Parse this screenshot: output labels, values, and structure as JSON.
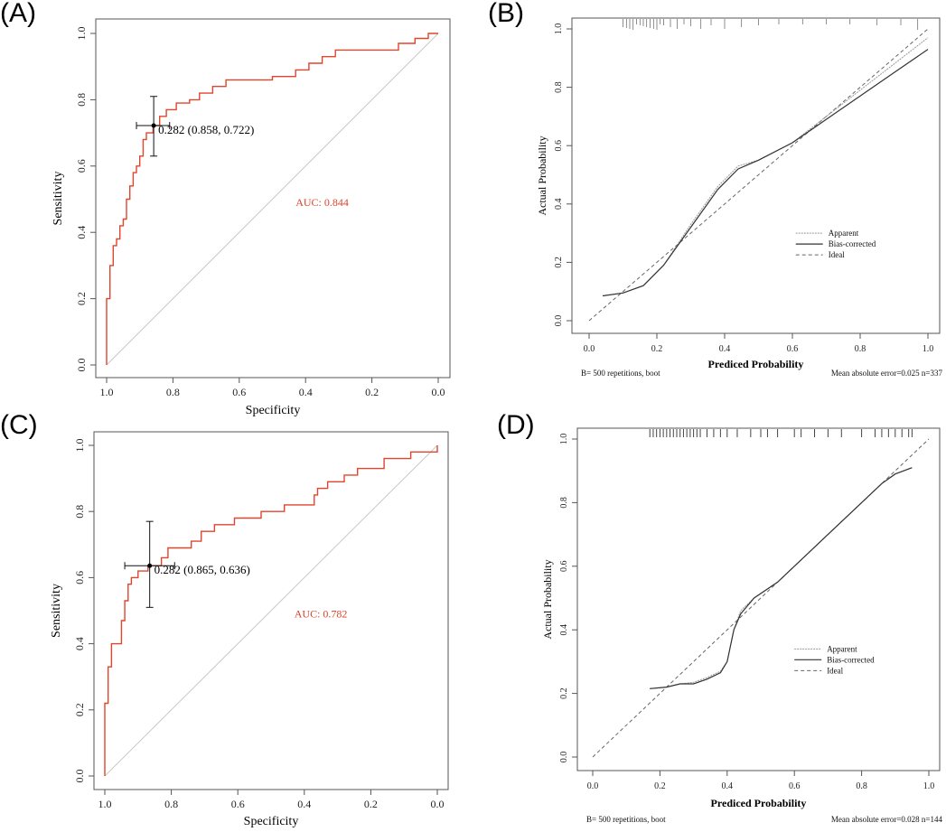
{
  "colors": {
    "roc": "#e0452e",
    "auc_text": "#d9452e",
    "ink": "#222222",
    "diag": "#c8c8c8",
    "frame": "#555555"
  },
  "chart_data": [
    {
      "id": "A",
      "panel_label": "(A)",
      "type": "line",
      "kind": "roc",
      "xlabel": "Specificity",
      "ylabel": "Sensitivity",
      "xlim": [
        1.0,
        0.0
      ],
      "ylim": [
        0.0,
        1.0
      ],
      "ticks": [
        "0.0",
        "0.2",
        "0.4",
        "0.6",
        "0.8",
        "1.0"
      ],
      "x_tick_labels": [
        "1.0",
        "0.8",
        "0.6",
        "0.4",
        "0.2",
        "0.0"
      ],
      "auc_label": "AUC: 0.844",
      "auc_pos": [
        0.43,
        0.48
      ],
      "threshold_label": "0.282 (0.858, 0.722)",
      "point": [
        0.858,
        0.722
      ],
      "ci_x": [
        0.91,
        0.81
      ],
      "ci_y": [
        0.63,
        0.81
      ],
      "curve": [
        [
          1.0,
          0.0
        ],
        [
          1.0,
          0.2
        ],
        [
          0.99,
          0.2
        ],
        [
          0.99,
          0.3
        ],
        [
          0.98,
          0.3
        ],
        [
          0.98,
          0.36
        ],
        [
          0.97,
          0.36
        ],
        [
          0.97,
          0.38
        ],
        [
          0.96,
          0.38
        ],
        [
          0.96,
          0.42
        ],
        [
          0.95,
          0.42
        ],
        [
          0.95,
          0.44
        ],
        [
          0.94,
          0.44
        ],
        [
          0.94,
          0.5
        ],
        [
          0.93,
          0.5
        ],
        [
          0.93,
          0.54
        ],
        [
          0.92,
          0.54
        ],
        [
          0.92,
          0.58
        ],
        [
          0.91,
          0.58
        ],
        [
          0.91,
          0.6
        ],
        [
          0.9,
          0.6
        ],
        [
          0.9,
          0.63
        ],
        [
          0.89,
          0.63
        ],
        [
          0.89,
          0.68
        ],
        [
          0.88,
          0.68
        ],
        [
          0.88,
          0.7
        ],
        [
          0.86,
          0.7
        ],
        [
          0.86,
          0.722
        ],
        [
          0.84,
          0.722
        ],
        [
          0.84,
          0.75
        ],
        [
          0.82,
          0.75
        ],
        [
          0.82,
          0.77
        ],
        [
          0.79,
          0.77
        ],
        [
          0.79,
          0.79
        ],
        [
          0.75,
          0.79
        ],
        [
          0.75,
          0.8
        ],
        [
          0.72,
          0.8
        ],
        [
          0.72,
          0.82
        ],
        [
          0.68,
          0.82
        ],
        [
          0.68,
          0.84
        ],
        [
          0.64,
          0.84
        ],
        [
          0.64,
          0.86
        ],
        [
          0.5,
          0.86
        ],
        [
          0.5,
          0.87
        ],
        [
          0.43,
          0.87
        ],
        [
          0.43,
          0.89
        ],
        [
          0.39,
          0.89
        ],
        [
          0.39,
          0.91
        ],
        [
          0.35,
          0.91
        ],
        [
          0.35,
          0.93
        ],
        [
          0.31,
          0.93
        ],
        [
          0.31,
          0.95
        ],
        [
          0.12,
          0.95
        ],
        [
          0.12,
          0.97
        ],
        [
          0.07,
          0.97
        ],
        [
          0.07,
          0.985
        ],
        [
          0.03,
          0.985
        ],
        [
          0.03,
          1.0
        ],
        [
          0.0,
          1.0
        ]
      ]
    },
    {
      "id": "B",
      "panel_label": "(B)",
      "type": "line",
      "kind": "calibration",
      "xlabel": "Prediced Probability",
      "ylabel": "Actual Probability",
      "xlim": [
        0.0,
        1.0
      ],
      "ylim": [
        0.0,
        1.0
      ],
      "ticks": [
        "0.0",
        "0.2",
        "0.4",
        "0.6",
        "0.8",
        "1.0"
      ],
      "footer_left": "B= 500 repetitions, boot",
      "footer_right": "Mean absolute error=0.025 n=337",
      "legend": [
        "Apparent",
        "Bias-corrected",
        "Ideal"
      ],
      "legend_pos": [
        0.61,
        0.3
      ],
      "rug_top": [
        0.1,
        0.11,
        0.12,
        0.13,
        0.14,
        0.15,
        0.16,
        0.17,
        0.18,
        0.19,
        0.2,
        0.21,
        0.22,
        0.24,
        0.26,
        0.28,
        0.3,
        0.33,
        0.36,
        0.4,
        0.45,
        0.5,
        0.56,
        0.63,
        0.7,
        0.77,
        0.85,
        0.92,
        0.97
      ],
      "apparent": [
        [
          0.04,
          0.085
        ],
        [
          0.1,
          0.095
        ],
        [
          0.16,
          0.12
        ],
        [
          0.22,
          0.19
        ],
        [
          0.3,
          0.33
        ],
        [
          0.38,
          0.46
        ],
        [
          0.44,
          0.53
        ],
        [
          0.5,
          0.55
        ],
        [
          0.6,
          0.61
        ],
        [
          0.7,
          0.7
        ],
        [
          0.8,
          0.79
        ],
        [
          0.9,
          0.88
        ],
        [
          1.0,
          0.97
        ]
      ],
      "bias_corrected": [
        [
          0.04,
          0.085
        ],
        [
          0.1,
          0.095
        ],
        [
          0.16,
          0.12
        ],
        [
          0.22,
          0.19
        ],
        [
          0.3,
          0.32
        ],
        [
          0.38,
          0.45
        ],
        [
          0.44,
          0.52
        ],
        [
          0.5,
          0.55
        ],
        [
          0.6,
          0.61
        ],
        [
          0.7,
          0.69
        ],
        [
          0.8,
          0.77
        ],
        [
          0.9,
          0.85
        ],
        [
          1.0,
          0.93
        ]
      ]
    },
    {
      "id": "C",
      "panel_label": "(C)",
      "type": "line",
      "kind": "roc",
      "xlabel": "Specificity",
      "ylabel": "Sensitivity",
      "xlim": [
        1.0,
        0.0
      ],
      "ylim": [
        0.0,
        1.0
      ],
      "ticks": [
        "0.0",
        "0.2",
        "0.4",
        "0.6",
        "0.8",
        "1.0"
      ],
      "x_tick_labels": [
        "1.0",
        "0.8",
        "0.6",
        "0.4",
        "0.2",
        "0.0"
      ],
      "auc_label": "AUC: 0.782",
      "auc_pos": [
        0.43,
        0.48
      ],
      "threshold_label": "0.282 (0.865, 0.636)",
      "point": [
        0.865,
        0.636
      ],
      "ci_x": [
        0.94,
        0.79
      ],
      "ci_y": [
        0.51,
        0.77
      ],
      "curve": [
        [
          1.0,
          0.0
        ],
        [
          1.0,
          0.22
        ],
        [
          0.99,
          0.22
        ],
        [
          0.99,
          0.33
        ],
        [
          0.98,
          0.33
        ],
        [
          0.98,
          0.4
        ],
        [
          0.95,
          0.4
        ],
        [
          0.95,
          0.47
        ],
        [
          0.94,
          0.47
        ],
        [
          0.94,
          0.53
        ],
        [
          0.93,
          0.53
        ],
        [
          0.93,
          0.58
        ],
        [
          0.92,
          0.58
        ],
        [
          0.92,
          0.6
        ],
        [
          0.9,
          0.6
        ],
        [
          0.9,
          0.62
        ],
        [
          0.87,
          0.62
        ],
        [
          0.87,
          0.636
        ],
        [
          0.83,
          0.636
        ],
        [
          0.83,
          0.66
        ],
        [
          0.81,
          0.66
        ],
        [
          0.81,
          0.69
        ],
        [
          0.74,
          0.69
        ],
        [
          0.74,
          0.71
        ],
        [
          0.71,
          0.71
        ],
        [
          0.71,
          0.74
        ],
        [
          0.67,
          0.74
        ],
        [
          0.67,
          0.76
        ],
        [
          0.61,
          0.76
        ],
        [
          0.61,
          0.78
        ],
        [
          0.53,
          0.78
        ],
        [
          0.53,
          0.8
        ],
        [
          0.46,
          0.8
        ],
        [
          0.46,
          0.82
        ],
        [
          0.37,
          0.82
        ],
        [
          0.37,
          0.85
        ],
        [
          0.36,
          0.85
        ],
        [
          0.36,
          0.87
        ],
        [
          0.33,
          0.87
        ],
        [
          0.33,
          0.89
        ],
        [
          0.28,
          0.89
        ],
        [
          0.28,
          0.91
        ],
        [
          0.24,
          0.91
        ],
        [
          0.24,
          0.93
        ],
        [
          0.16,
          0.93
        ],
        [
          0.16,
          0.96
        ],
        [
          0.08,
          0.96
        ],
        [
          0.08,
          0.98
        ],
        [
          0.0,
          0.98
        ],
        [
          0.0,
          1.0
        ]
      ]
    },
    {
      "id": "D",
      "panel_label": "(D)",
      "type": "line",
      "kind": "calibration",
      "xlabel": "Prediced Probability",
      "ylabel": "Actual Probability",
      "xlim": [
        0.0,
        1.0
      ],
      "ylim": [
        0.0,
        1.0
      ],
      "ticks": [
        "0.0",
        "0.2",
        "0.4",
        "0.6",
        "0.8",
        "1.0"
      ],
      "footer_left": "B= 500 repetitions, boot",
      "footer_right": "Mean absolute error=0.028 n=144",
      "legend": [
        "Apparent",
        "Bias-corrected",
        "Ideal"
      ],
      "legend_pos": [
        0.6,
        0.34
      ],
      "rug_top": [
        0.17,
        0.18,
        0.19,
        0.2,
        0.21,
        0.22,
        0.23,
        0.24,
        0.25,
        0.26,
        0.27,
        0.28,
        0.29,
        0.3,
        0.31,
        0.32,
        0.34,
        0.36,
        0.38,
        0.4,
        0.43,
        0.47,
        0.5,
        0.52,
        0.55,
        0.6,
        0.62,
        0.66,
        0.7,
        0.74,
        0.8,
        0.84,
        0.86,
        0.88,
        0.9,
        0.92,
        0.94,
        0.95
      ],
      "apparent": [
        [
          0.17,
          0.215
        ],
        [
          0.22,
          0.22
        ],
        [
          0.26,
          0.23
        ],
        [
          0.3,
          0.235
        ],
        [
          0.34,
          0.25
        ],
        [
          0.38,
          0.27
        ],
        [
          0.4,
          0.3
        ],
        [
          0.42,
          0.4
        ],
        [
          0.44,
          0.46
        ],
        [
          0.48,
          0.5
        ],
        [
          0.55,
          0.55
        ],
        [
          0.62,
          0.62
        ],
        [
          0.7,
          0.7
        ],
        [
          0.78,
          0.78
        ],
        [
          0.86,
          0.86
        ],
        [
          0.9,
          0.89
        ],
        [
          0.95,
          0.91
        ]
      ],
      "bias_corrected": [
        [
          0.17,
          0.215
        ],
        [
          0.22,
          0.22
        ],
        [
          0.26,
          0.23
        ],
        [
          0.3,
          0.23
        ],
        [
          0.34,
          0.245
        ],
        [
          0.38,
          0.265
        ],
        [
          0.4,
          0.3
        ],
        [
          0.42,
          0.4
        ],
        [
          0.44,
          0.45
        ],
        [
          0.48,
          0.5
        ],
        [
          0.55,
          0.55
        ],
        [
          0.62,
          0.62
        ],
        [
          0.7,
          0.7
        ],
        [
          0.78,
          0.78
        ],
        [
          0.86,
          0.86
        ],
        [
          0.9,
          0.89
        ],
        [
          0.95,
          0.91
        ]
      ]
    }
  ]
}
